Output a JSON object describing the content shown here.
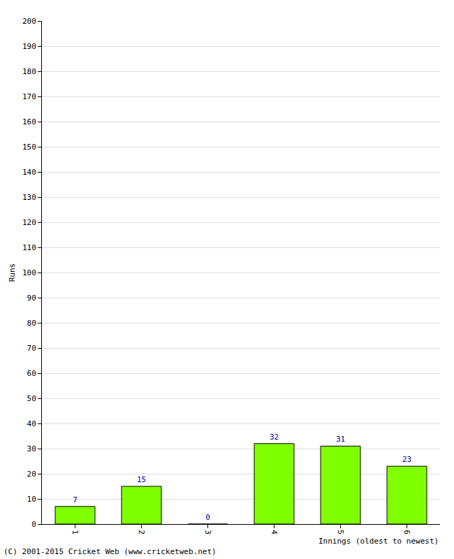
{
  "chart_data": {
    "type": "bar",
    "xlabel": "Innings (oldest to newest)",
    "ylabel": "Runs",
    "categories": [
      "1",
      "2",
      "3",
      "4",
      "5",
      "6"
    ],
    "values": [
      7,
      15,
      0,
      32,
      31,
      23
    ],
    "color": "#80ff00",
    "ylim": [
      0,
      200
    ],
    "yticks": [
      0,
      10,
      20,
      30,
      40,
      50,
      60,
      70,
      80,
      90,
      100,
      110,
      120,
      130,
      140,
      150,
      160,
      170,
      180,
      190,
      200
    ],
    "grid": true,
    "data_labels": true,
    "annotations": [
      "(C) 2001-2015 Cricket Web (www.cricketweb.net)"
    ]
  }
}
